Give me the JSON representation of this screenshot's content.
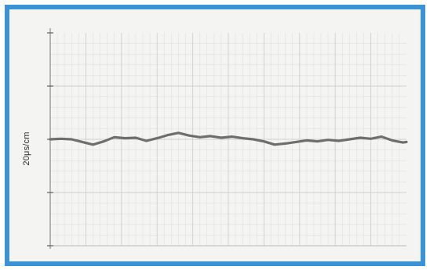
{
  "chart_data": {
    "type": "line",
    "ylabel": "20μs/cm",
    "xlabel": "",
    "title": "",
    "grid": true,
    "legend": "none",
    "line_color": "#6e6e6e",
    "grid_color": "#cfcfcf",
    "xlim": [
      0,
      10
    ],
    "ylim": [
      -2,
      2
    ],
    "y_ticks": [
      -2,
      -1,
      0,
      1,
      2
    ],
    "series": [
      {
        "x": [
          0,
          0.3,
          0.6,
          0.9,
          1.2,
          1.5,
          1.8,
          2.1,
          2.4,
          2.7,
          3.0,
          3.3,
          3.6,
          3.9,
          4.2,
          4.5,
          4.8,
          5.1,
          5.4,
          5.7,
          6.0,
          6.3,
          6.6,
          6.9,
          7.2,
          7.5,
          7.8,
          8.1,
          8.4,
          8.7,
          9.0,
          9.3,
          9.6,
          9.9,
          10
        ],
        "values": [
          0.0,
          0.01,
          0.0,
          -0.05,
          -0.1,
          -0.04,
          0.04,
          0.02,
          0.03,
          -0.03,
          0.02,
          0.08,
          0.12,
          0.07,
          0.04,
          0.06,
          0.03,
          0.05,
          0.02,
          0.0,
          -0.04,
          -0.1,
          -0.08,
          -0.05,
          -0.02,
          -0.04,
          -0.01,
          -0.03,
          0.0,
          0.03,
          0.01,
          0.05,
          -0.02,
          -0.06,
          -0.05
        ]
      }
    ]
  }
}
